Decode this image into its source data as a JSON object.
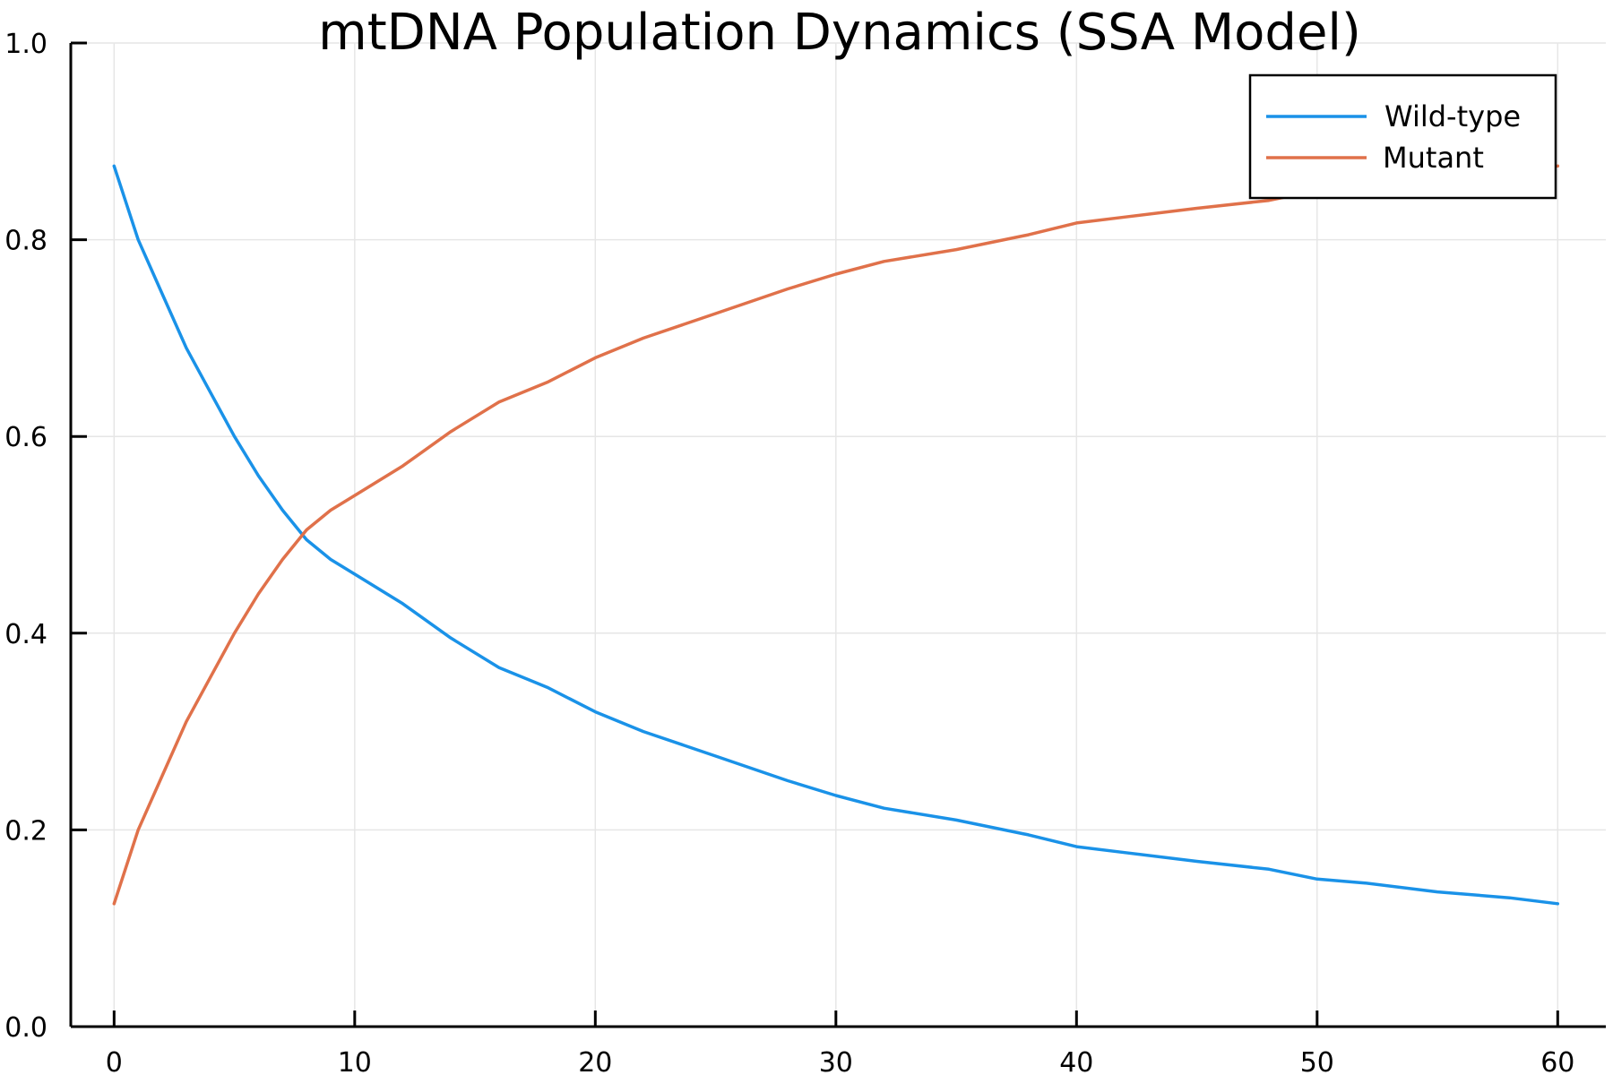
{
  "chart_data": {
    "type": "line",
    "title": "mtDNA Population Dynamics (SSA Model)",
    "xlabel": "",
    "ylabel": "",
    "xlim": [
      -1.8,
      62
    ],
    "ylim": [
      0,
      1
    ],
    "xticks": [
      0,
      10,
      20,
      30,
      40,
      50,
      60
    ],
    "xtick_labels": [
      "0",
      "10",
      "20",
      "30",
      "40",
      "50",
      "60"
    ],
    "yticks": [
      0.0,
      0.2,
      0.4,
      0.6,
      0.8,
      1.0
    ],
    "ytick_labels": [
      "0.0",
      "0.2",
      "0.4",
      "0.6",
      "0.8",
      "1.0"
    ],
    "grid": true,
    "legend_position": "top-right",
    "series": [
      {
        "name": "Wild-type",
        "color": "#1a92e8",
        "x": [
          0,
          1,
          2,
          3,
          4,
          5,
          6,
          7,
          8,
          9,
          10,
          12,
          14,
          16,
          18,
          20,
          22,
          25,
          28,
          30,
          32,
          35,
          38,
          40,
          42,
          45,
          48,
          50,
          52,
          55,
          58,
          60
        ],
        "y": [
          0.875,
          0.8,
          0.745,
          0.69,
          0.645,
          0.6,
          0.56,
          0.525,
          0.495,
          0.475,
          0.46,
          0.43,
          0.395,
          0.365,
          0.345,
          0.32,
          0.3,
          0.275,
          0.25,
          0.235,
          0.222,
          0.21,
          0.195,
          0.183,
          0.177,
          0.168,
          0.16,
          0.15,
          0.146,
          0.137,
          0.131,
          0.125
        ]
      },
      {
        "name": "Mutant",
        "color": "#e0714a",
        "x": [
          0,
          1,
          2,
          3,
          4,
          5,
          6,
          7,
          8,
          9,
          10,
          12,
          14,
          16,
          18,
          20,
          22,
          25,
          28,
          30,
          32,
          35,
          38,
          40,
          42,
          45,
          48,
          50,
          52,
          55,
          58,
          60
        ],
        "y": [
          0.125,
          0.2,
          0.255,
          0.31,
          0.355,
          0.4,
          0.44,
          0.475,
          0.505,
          0.525,
          0.54,
          0.57,
          0.605,
          0.635,
          0.655,
          0.68,
          0.7,
          0.725,
          0.75,
          0.765,
          0.778,
          0.79,
          0.805,
          0.817,
          0.823,
          0.832,
          0.84,
          0.85,
          0.854,
          0.863,
          0.869,
          0.875
        ]
      }
    ]
  }
}
